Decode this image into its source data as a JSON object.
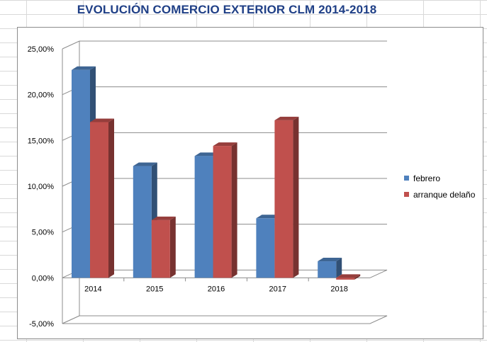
{
  "chart_data": {
    "type": "bar",
    "subtype": "3d-clustered-column",
    "title": "EVOLUCIÓN COMERCIO EXTERIOR CLM 2014-2018",
    "categories": [
      "2014",
      "2015",
      "2016",
      "2017",
      "2018"
    ],
    "series": [
      {
        "name": "febrero",
        "color": "#4f81bd",
        "values": [
          22.7,
          12.2,
          13.3,
          6.5,
          1.8
        ]
      },
      {
        "name": "arranque delaño",
        "color": "#c0504d",
        "values": [
          17.0,
          6.3,
          14.4,
          17.2,
          -0.2
        ]
      }
    ],
    "y_ticks": [
      "-5,00%",
      "0,00%",
      "5,00%",
      "10,00%",
      "15,00%",
      "20,00%",
      "25,00%"
    ],
    "ylim": [
      -5,
      25
    ],
    "grid": true,
    "legend_position": "right",
    "title_color": "#1f3f86"
  }
}
